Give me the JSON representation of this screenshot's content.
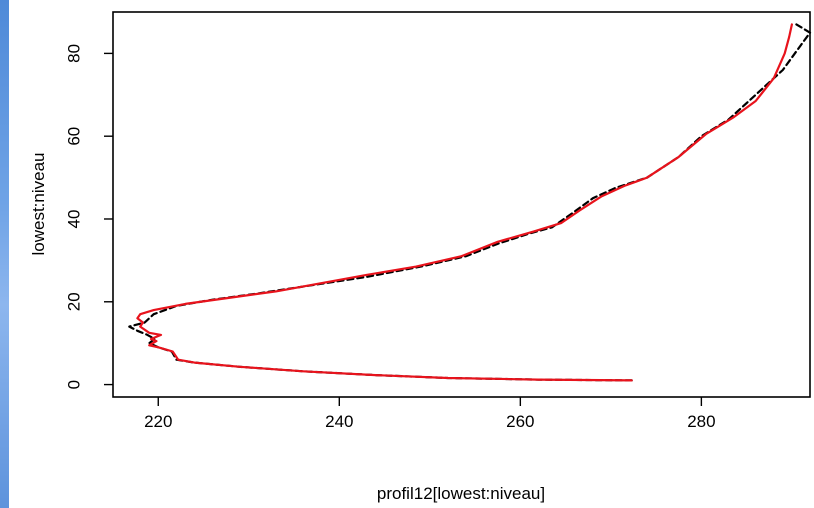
{
  "chart_data": {
    "type": "line",
    "title": "",
    "xlabel": "profil12[lowest:niveau]",
    "ylabel": "lowest:niveau",
    "xlim": [
      215,
      292
    ],
    "ylim": [
      -3,
      90
    ],
    "xticks": [
      220,
      240,
      260,
      280
    ],
    "yticks": [
      0,
      20,
      40,
      60,
      80
    ],
    "grid": false,
    "legend": "none",
    "series": [
      {
        "color": "#000000",
        "style": "dashed",
        "points": [
          [
            272.3,
            1
          ],
          [
            262,
            1.2
          ],
          [
            252,
            1.6
          ],
          [
            244,
            2.3
          ],
          [
            236,
            3.2
          ],
          [
            229,
            4.3
          ],
          [
            224,
            5.3
          ],
          [
            222,
            6
          ],
          [
            221.5,
            8
          ],
          [
            220,
            9
          ],
          [
            219,
            10
          ],
          [
            219.6,
            11
          ],
          [
            218.8,
            12
          ],
          [
            217.7,
            13
          ],
          [
            216.8,
            14
          ],
          [
            218.5,
            15
          ],
          [
            219.5,
            17
          ],
          [
            222,
            19
          ],
          [
            226,
            20.5
          ],
          [
            231,
            22
          ],
          [
            237,
            24
          ],
          [
            243,
            26
          ],
          [
            249,
            28.5
          ],
          [
            254,
            31
          ],
          [
            257.5,
            34
          ],
          [
            261,
            36.5
          ],
          [
            263.5,
            38
          ],
          [
            265.5,
            41
          ],
          [
            268,
            45
          ],
          [
            270.5,
            47.5
          ],
          [
            274,
            50
          ],
          [
            277.5,
            55
          ],
          [
            280,
            60
          ],
          [
            283,
            64
          ],
          [
            286,
            70
          ],
          [
            289,
            76
          ],
          [
            291,
            82
          ],
          [
            292,
            85
          ],
          [
            290.5,
            87
          ]
        ]
      },
      {
        "color": "#e8131c",
        "style": "solid",
        "points": [
          [
            272.3,
            1
          ],
          [
            262,
            1.2
          ],
          [
            252,
            1.6
          ],
          [
            244,
            2.3
          ],
          [
            236,
            3.2
          ],
          [
            229,
            4.3
          ],
          [
            224,
            5.3
          ],
          [
            222.2,
            6
          ],
          [
            221.6,
            8
          ],
          [
            220,
            9
          ],
          [
            219,
            9.5
          ],
          [
            219.8,
            10.5
          ],
          [
            219.2,
            11
          ],
          [
            220.3,
            12
          ],
          [
            219,
            12.5
          ],
          [
            218,
            14
          ],
          [
            218.3,
            15
          ],
          [
            217.7,
            16
          ],
          [
            218,
            17
          ],
          [
            219.5,
            18
          ],
          [
            223,
            19.5
          ],
          [
            228,
            21
          ],
          [
            233,
            22.5
          ],
          [
            238,
            24.5
          ],
          [
            243,
            26.5
          ],
          [
            248.5,
            28.5
          ],
          [
            253.5,
            31
          ],
          [
            257.5,
            34.5
          ],
          [
            261.5,
            37
          ],
          [
            264.5,
            39
          ],
          [
            266.5,
            42
          ],
          [
            269,
            45.5
          ],
          [
            271.5,
            48
          ],
          [
            274,
            50
          ],
          [
            277.5,
            55
          ],
          [
            280.5,
            60.5
          ],
          [
            283.5,
            64.5
          ],
          [
            286,
            68.5
          ],
          [
            288,
            74
          ],
          [
            289.2,
            80
          ],
          [
            289.7,
            84
          ],
          [
            290,
            87
          ]
        ]
      }
    ]
  }
}
